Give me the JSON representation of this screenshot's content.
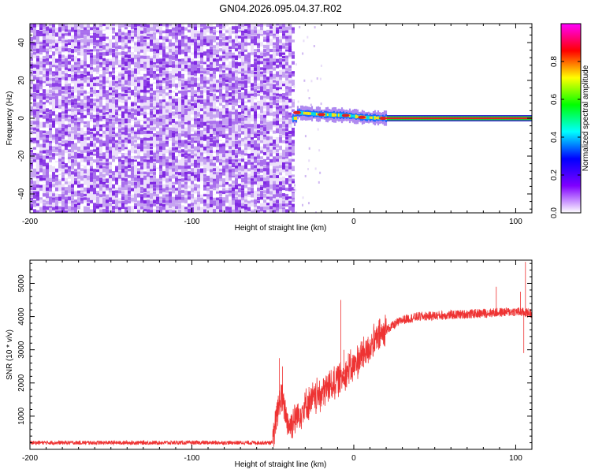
{
  "title": "GN04.2026.095.04.37.R02",
  "chart_data": [
    {
      "type": "heatmap",
      "xlabel": "Height of straight line (km)",
      "ylabel": "Frequency (Hz)",
      "xlim": [
        -200,
        110
      ],
      "ylim": [
        -50,
        50
      ],
      "xticks": [
        -200,
        -100,
        0,
        100
      ],
      "yticks": [
        -40,
        -20,
        0,
        20,
        40
      ],
      "noise_region_x": [
        -200,
        -38
      ],
      "signal": {
        "x_start": -38,
        "x_end": 110,
        "center_freq_hz": [
          {
            "x": -36,
            "f": 3
          },
          {
            "x": -20,
            "f": 2
          },
          {
            "x": -5,
            "f": 1.5
          },
          {
            "x": 5,
            "f": 0.5
          },
          {
            "x": 20,
            "f": 0
          },
          {
            "x": 110,
            "f": 0
          }
        ]
      },
      "colorbar": {
        "label": "Normalized spectral amplitude",
        "range": [
          0,
          1
        ],
        "ticks": [
          "0.0",
          "0.2",
          "0.4",
          "0.6",
          "0.8"
        ],
        "colors": [
          "#ffffff",
          "#8000ff",
          "#0000ff",
          "#00ffff",
          "#00ff00",
          "#ffff00",
          "#ff0000",
          "#ff00ff"
        ]
      },
      "grid": false
    },
    {
      "type": "line",
      "xlabel": "Height of straight line (km)",
      "ylabel": "SNR (10 * v/v)",
      "xlim": [
        -200,
        110
      ],
      "ylim": [
        0,
        5700
      ],
      "xticks": [
        -200,
        -100,
        0,
        100
      ],
      "yticks": [
        1000,
        2000,
        3000,
        4000,
        5000
      ],
      "series": [
        {
          "color": "#ee3333",
          "envelope": [
            {
              "x": -200,
              "y": 200
            },
            {
              "x": -50,
              "y": 200
            },
            {
              "x": -48,
              "y": 900
            },
            {
              "x": -45,
              "y": 1600
            },
            {
              "x": -40,
              "y": 700
            },
            {
              "x": -30,
              "y": 1300
            },
            {
              "x": -20,
              "y": 1700
            },
            {
              "x": -10,
              "y": 2100
            },
            {
              "x": 0,
              "y": 2500
            },
            {
              "x": 10,
              "y": 3100
            },
            {
              "x": 20,
              "y": 3600
            },
            {
              "x": 30,
              "y": 3900
            },
            {
              "x": 40,
              "y": 4000
            },
            {
              "x": 60,
              "y": 4050
            },
            {
              "x": 80,
              "y": 4100
            },
            {
              "x": 100,
              "y": 4150
            },
            {
              "x": 110,
              "y": 4100
            }
          ],
          "spikes": [
            {
              "x": -46,
              "y": 2750
            },
            {
              "x": -44,
              "y": 2500
            },
            {
              "x": -8,
              "y": 4500
            },
            {
              "x": -6,
              "y": 3000
            },
            {
              "x": 88,
              "y": 4900
            },
            {
              "x": 103,
              "y": 4750
            },
            {
              "x": 106,
              "y": 5650
            },
            {
              "x": 105,
              "y": 2900
            }
          ]
        }
      ],
      "grid": false
    }
  ]
}
